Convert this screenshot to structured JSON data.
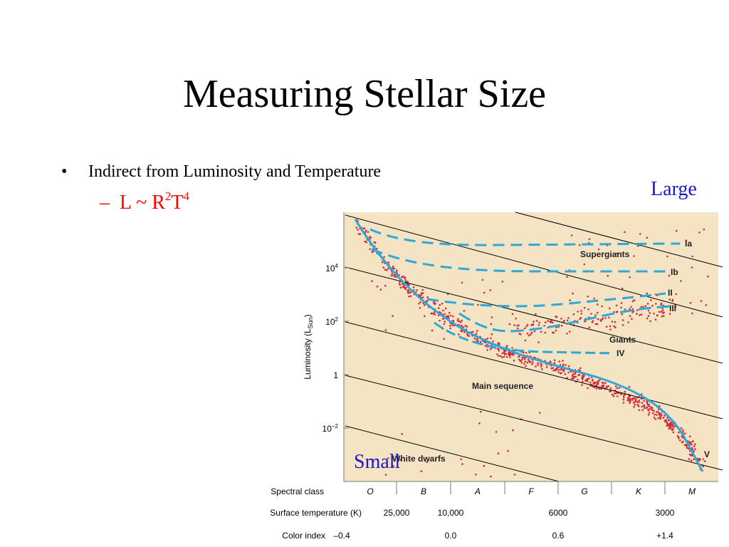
{
  "slide": {
    "title": "Measuring Stellar Size",
    "bullet_marker": "•",
    "bullet": "Indirect from Luminosity and Temperature",
    "sub_dash": "–",
    "formula": {
      "base": "L ~ R",
      "exp1": "2",
      "mid": "T",
      "exp2": "4"
    },
    "label_large": "Large",
    "label_small": "Small"
  },
  "diagram": {
    "y_axis_label": "Luminosity (L",
    "y_axis_sub": "Sun",
    "y_axis_close": ")",
    "y_ticks": [
      {
        "base": "10",
        "exp": "4"
      },
      {
        "base": "10",
        "exp": "2"
      },
      {
        "base": "1",
        "exp": ""
      },
      {
        "base": "10",
        "exp": "−2"
      }
    ],
    "rows": [
      {
        "label": "Spectral class",
        "values": [
          "O",
          "B",
          "A",
          "F",
          "G",
          "K",
          "M"
        ]
      },
      {
        "label": "Surface temperature (K)",
        "values": [
          "25,000",
          "10,000",
          "6000",
          "3000"
        ]
      },
      {
        "label": "Color index",
        "values": [
          "–0.4",
          "0.0",
          "0.6",
          "+1.4"
        ]
      }
    ],
    "classes": [
      {
        "label": "Ia"
      },
      {
        "label": "Ib"
      },
      {
        "label": "II"
      },
      {
        "label": "III"
      },
      {
        "label": "IV"
      },
      {
        "label": "V"
      }
    ],
    "regions": [
      "Supergiants",
      "Giants",
      "Main sequence",
      "White dwarfs"
    ],
    "colors": {
      "panel": "#f4e4c4",
      "track": "#2ea8d8",
      "star": "#d12b3a",
      "text_blue": "#1a1acc",
      "text_red": "#ff0000"
    }
  }
}
